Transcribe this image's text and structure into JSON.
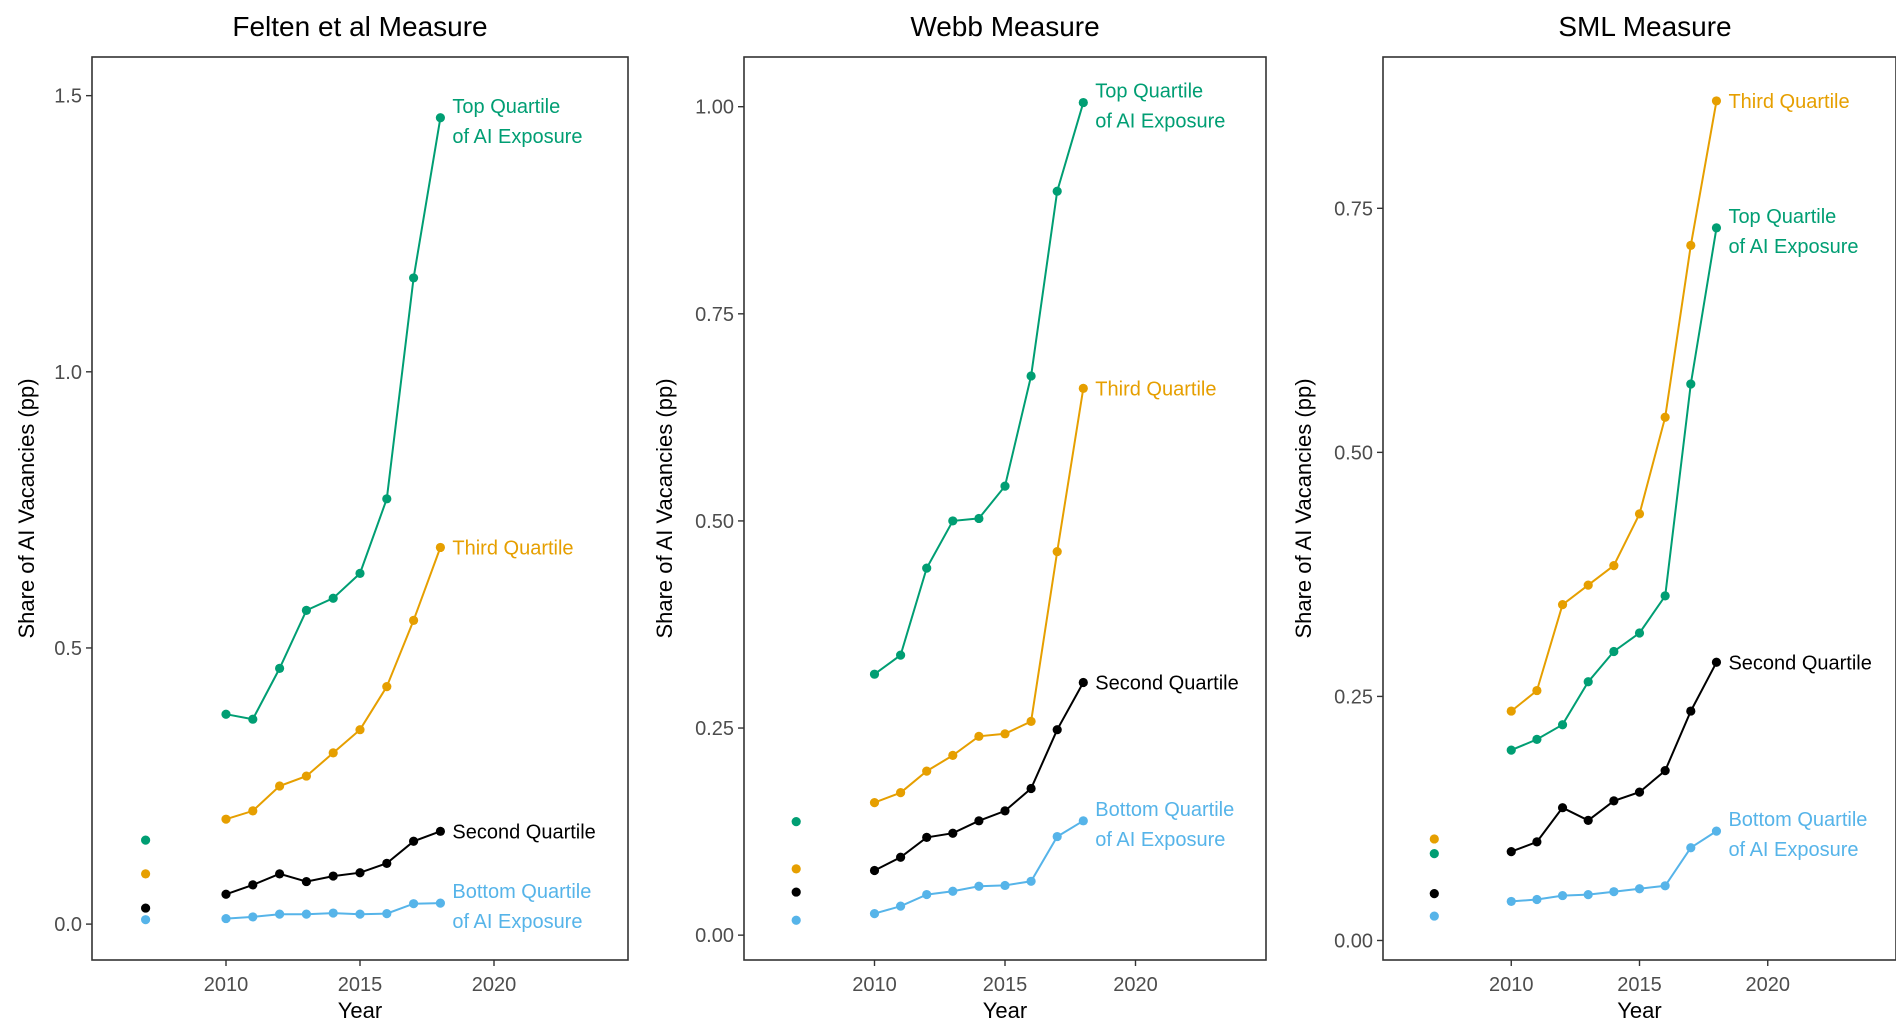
{
  "colors": {
    "top": "#009E73",
    "third": "#E69F00",
    "second": "#000000",
    "bottom": "#56B4E9"
  },
  "chart_data": [
    {
      "type": "line",
      "title": "Felten et al Measure",
      "xlabel": "Year",
      "ylabel": "Share of AI Vacancies (pp)",
      "xlim": [
        2005,
        2025
      ],
      "ylim": [
        -0.065,
        1.57
      ],
      "x_ticks": [
        2010,
        2015,
        2020
      ],
      "y_ticks": [
        0.0,
        0.5,
        1.0,
        1.5
      ],
      "y_tick_labels": [
        "0.0",
        "0.5",
        "1.0",
        "1.5"
      ],
      "grid": false,
      "legend": "direct labels at line ends",
      "series": [
        {
          "key": "top",
          "label_lines": [
            "Top Quartile",
            "of AI Exposure"
          ],
          "point_2007": 0.152,
          "x": [
            2010,
            2011,
            2012,
            2013,
            2014,
            2015,
            2016,
            2017,
            2018
          ],
          "y": [
            0.38,
            0.371,
            0.463,
            0.568,
            0.59,
            0.635,
            0.77,
            1.17,
            1.46
          ]
        },
        {
          "key": "third",
          "label_lines": [
            "Third Quartile"
          ],
          "point_2007": 0.091,
          "x": [
            2010,
            2011,
            2012,
            2013,
            2014,
            2015,
            2016,
            2017,
            2018
          ],
          "y": [
            0.19,
            0.205,
            0.25,
            0.268,
            0.31,
            0.352,
            0.43,
            0.55,
            0.682
          ]
        },
        {
          "key": "second",
          "label_lines": [
            "Second Quartile"
          ],
          "point_2007": 0.029,
          "x": [
            2010,
            2011,
            2012,
            2013,
            2014,
            2015,
            2016,
            2017,
            2018
          ],
          "y": [
            0.054,
            0.071,
            0.091,
            0.077,
            0.087,
            0.093,
            0.11,
            0.15,
            0.168
          ]
        },
        {
          "key": "bottom",
          "label_lines": [
            "Bottom Quartile",
            "of AI Exposure"
          ],
          "point_2007": 0.008,
          "x": [
            2010,
            2011,
            2012,
            2013,
            2014,
            2015,
            2016,
            2017,
            2018
          ],
          "y": [
            0.01,
            0.013,
            0.018,
            0.018,
            0.02,
            0.018,
            0.019,
            0.037,
            0.038
          ]
        }
      ]
    },
    {
      "type": "line",
      "title": "Webb Measure",
      "xlabel": "Year",
      "ylabel": "Share of AI Vacancies (pp)",
      "xlim": [
        2005,
        2025
      ],
      "ylim": [
        -0.03,
        1.06
      ],
      "x_ticks": [
        2010,
        2015,
        2020
      ],
      "y_ticks": [
        0.0,
        0.25,
        0.5,
        0.75,
        1.0
      ],
      "y_tick_labels": [
        "0.00",
        "0.25",
        "0.50",
        "0.75",
        "1.00"
      ],
      "grid": false,
      "legend": "direct labels at line ends",
      "series": [
        {
          "key": "top",
          "label_lines": [
            "Top Quartile",
            "of AI Exposure"
          ],
          "point_2007": 0.137,
          "x": [
            2010,
            2011,
            2012,
            2013,
            2014,
            2015,
            2016,
            2017,
            2018
          ],
          "y": [
            0.315,
            0.338,
            0.443,
            0.5,
            0.503,
            0.542,
            0.675,
            0.898,
            1.005
          ]
        },
        {
          "key": "third",
          "label_lines": [
            "Third Quartile"
          ],
          "point_2007": 0.08,
          "x": [
            2010,
            2011,
            2012,
            2013,
            2014,
            2015,
            2016,
            2017,
            2018
          ],
          "y": [
            0.16,
            0.172,
            0.198,
            0.217,
            0.24,
            0.243,
            0.258,
            0.463,
            0.66
          ]
        },
        {
          "key": "second",
          "label_lines": [
            "Second Quartile"
          ],
          "point_2007": 0.052,
          "x": [
            2010,
            2011,
            2012,
            2013,
            2014,
            2015,
            2016,
            2017,
            2018
          ],
          "y": [
            0.078,
            0.094,
            0.118,
            0.123,
            0.138,
            0.15,
            0.177,
            0.248,
            0.305
          ]
        },
        {
          "key": "bottom",
          "label_lines": [
            "Bottom Quartile",
            "of AI Exposure"
          ],
          "point_2007": 0.018,
          "x": [
            2010,
            2011,
            2012,
            2013,
            2014,
            2015,
            2016,
            2017,
            2018
          ],
          "y": [
            0.026,
            0.035,
            0.049,
            0.053,
            0.059,
            0.06,
            0.065,
            0.119,
            0.138
          ]
        }
      ]
    },
    {
      "type": "line",
      "title": "SML Measure",
      "xlabel": "Year",
      "ylabel": "Share of AI Vacancies (pp)",
      "xlim": [
        2005,
        2025
      ],
      "ylim": [
        -0.02,
        0.905
      ],
      "x_ticks": [
        2010,
        2015,
        2020
      ],
      "y_ticks": [
        0.0,
        0.25,
        0.5,
        0.75
      ],
      "y_tick_labels": [
        "0.00",
        "0.25",
        "0.50",
        "0.75"
      ],
      "grid": false,
      "legend": "direct labels at line ends",
      "series": [
        {
          "key": "third",
          "label_lines": [
            "Third Quartile"
          ],
          "point_2007": 0.104,
          "x": [
            2010,
            2011,
            2012,
            2013,
            2014,
            2015,
            2016,
            2017,
            2018
          ],
          "y": [
            0.235,
            0.256,
            0.344,
            0.364,
            0.384,
            0.437,
            0.536,
            0.712,
            0.86
          ]
        },
        {
          "key": "top",
          "label_lines": [
            "Top Quartile",
            "of AI Exposure"
          ],
          "point_2007": 0.089,
          "x": [
            2010,
            2011,
            2012,
            2013,
            2014,
            2015,
            2016,
            2017,
            2018
          ],
          "y": [
            0.195,
            0.206,
            0.221,
            0.265,
            0.296,
            0.315,
            0.353,
            0.57,
            0.73
          ]
        },
        {
          "key": "second",
          "label_lines": [
            "Second Quartile"
          ],
          "point_2007": 0.048,
          "x": [
            2010,
            2011,
            2012,
            2013,
            2014,
            2015,
            2016,
            2017,
            2018
          ],
          "y": [
            0.091,
            0.101,
            0.136,
            0.123,
            0.143,
            0.152,
            0.174,
            0.235,
            0.285
          ]
        },
        {
          "key": "bottom",
          "label_lines": [
            "Bottom Quartile",
            "of AI Exposure"
          ],
          "point_2007": 0.025,
          "x": [
            2010,
            2011,
            2012,
            2013,
            2014,
            2015,
            2016,
            2017,
            2018
          ],
          "y": [
            0.04,
            0.042,
            0.046,
            0.047,
            0.05,
            0.053,
            0.056,
            0.095,
            0.112
          ]
        }
      ]
    }
  ]
}
